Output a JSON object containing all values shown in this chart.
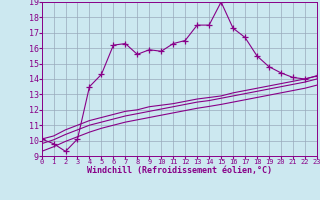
{
  "xlabel": "Windchill (Refroidissement éolien,°C)",
  "xlim": [
    0,
    23
  ],
  "ylim": [
    9,
    19
  ],
  "yticks": [
    9,
    10,
    11,
    12,
    13,
    14,
    15,
    16,
    17,
    18,
    19
  ],
  "xticks": [
    0,
    1,
    2,
    3,
    4,
    5,
    6,
    7,
    8,
    9,
    10,
    11,
    12,
    13,
    14,
    15,
    16,
    17,
    18,
    19,
    20,
    21,
    22,
    23
  ],
  "bg_color": "#cce8f0",
  "line_color": "#880088",
  "grid_color": "#99aabb",
  "curve1_x": [
    0,
    1,
    2,
    3,
    4,
    5,
    6,
    7,
    8,
    9,
    10,
    11,
    12,
    13,
    14,
    15,
    16,
    17,
    18,
    19,
    20,
    21,
    22,
    23
  ],
  "curve1_y": [
    10.1,
    9.8,
    9.3,
    10.1,
    13.5,
    14.3,
    16.2,
    16.3,
    15.6,
    15.9,
    15.8,
    16.3,
    16.5,
    17.5,
    17.5,
    19.0,
    17.3,
    16.7,
    15.5,
    14.8,
    14.4,
    14.1,
    14.0,
    14.2
  ],
  "curve2_x": [
    0,
    1,
    2,
    3,
    4,
    5,
    6,
    7,
    8,
    9,
    10,
    11,
    12,
    13,
    14,
    15,
    16,
    17,
    18,
    19,
    20,
    21,
    22,
    23
  ],
  "curve2_y": [
    10.1,
    10.3,
    10.7,
    11.0,
    11.3,
    11.5,
    11.7,
    11.9,
    12.0,
    12.2,
    12.3,
    12.4,
    12.55,
    12.7,
    12.8,
    12.9,
    13.1,
    13.25,
    13.4,
    13.55,
    13.7,
    13.85,
    14.0,
    14.2
  ],
  "curve3_x": [
    0,
    1,
    2,
    3,
    4,
    5,
    6,
    7,
    8,
    9,
    10,
    11,
    12,
    13,
    14,
    15,
    16,
    17,
    18,
    19,
    20,
    21,
    22,
    23
  ],
  "curve3_y": [
    9.8,
    10.05,
    10.4,
    10.7,
    11.0,
    11.2,
    11.4,
    11.6,
    11.75,
    11.9,
    12.05,
    12.2,
    12.35,
    12.5,
    12.6,
    12.75,
    12.9,
    13.05,
    13.2,
    13.35,
    13.5,
    13.65,
    13.8,
    14.0
  ],
  "curve4_x": [
    0,
    1,
    2,
    3,
    4,
    5,
    6,
    7,
    8,
    9,
    10,
    11,
    12,
    13,
    14,
    15,
    16,
    17,
    18,
    19,
    20,
    21,
    22,
    23
  ],
  "curve4_y": [
    9.3,
    9.6,
    9.95,
    10.25,
    10.55,
    10.8,
    11.0,
    11.2,
    11.35,
    11.5,
    11.65,
    11.8,
    11.95,
    12.1,
    12.22,
    12.35,
    12.5,
    12.65,
    12.8,
    12.95,
    13.1,
    13.25,
    13.4,
    13.6
  ]
}
